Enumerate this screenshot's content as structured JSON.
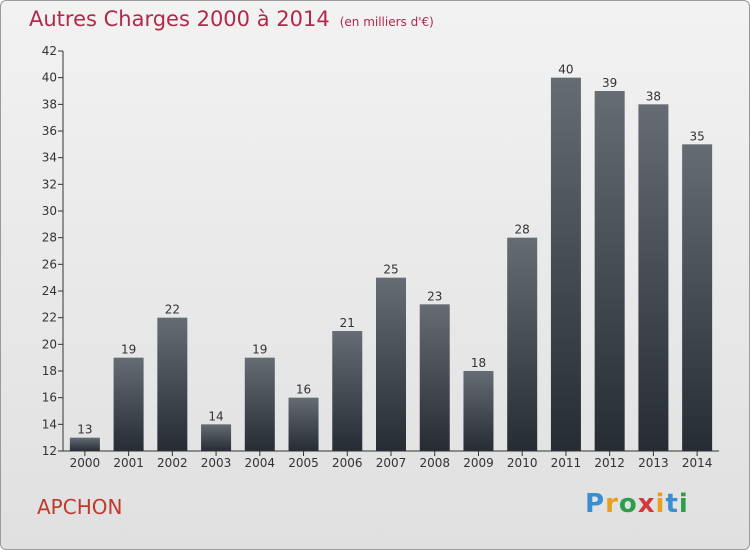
{
  "header": {
    "title": "Autres Charges 2000 à 2014",
    "subtitle": "(en milliers d'€)"
  },
  "commune": "APCHON",
  "logo": {
    "text": "Proxiti",
    "colors": [
      "#3a8fd0",
      "#e8a11e",
      "#2f9e4a",
      "#d23a3a",
      "#e8a11e",
      "#3a8fd0",
      "#2f9e4a"
    ]
  },
  "colors": {
    "title": "#b22a4a",
    "bar_top": "#666c74",
    "bar_bottom": "#262c33",
    "axis": "#333333"
  },
  "chart_data": {
    "type": "bar",
    "title": "Autres Charges 2000 à 2014",
    "subtitle": "(en milliers d'€)",
    "categories": [
      "2000",
      "2001",
      "2002",
      "2003",
      "2004",
      "2005",
      "2006",
      "2007",
      "2008",
      "2009",
      "2010",
      "2011",
      "2012",
      "2013",
      "2014"
    ],
    "values": [
      13,
      19,
      22,
      14,
      19,
      16,
      21,
      25,
      23,
      18,
      28,
      40,
      39,
      38,
      35
    ],
    "ylim": [
      12,
      42
    ],
    "yticks": [
      12,
      14,
      16,
      18,
      20,
      22,
      24,
      26,
      28,
      30,
      32,
      34,
      36,
      38,
      40,
      42
    ],
    "grid": false,
    "data_labels": true
  }
}
